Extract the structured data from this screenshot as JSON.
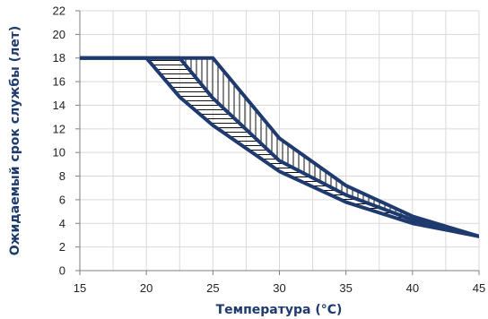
{
  "chart_data": {
    "type": "area",
    "title": "",
    "xlabel": "Температура (°C)",
    "ylabel": "Ожидаемый срок службы (лет)",
    "xlim": [
      15,
      45
    ],
    "ylim": [
      0,
      22
    ],
    "x_ticks": [
      15,
      20,
      25,
      30,
      35,
      40,
      45
    ],
    "y_ticks": [
      0,
      2,
      4,
      6,
      8,
      10,
      12,
      14,
      16,
      18,
      20,
      22
    ],
    "grid": true,
    "legend": "none",
    "series": [
      {
        "values": [
          [
            15,
            18
          ],
          [
            20,
            18
          ],
          [
            25,
            18
          ],
          [
            30,
            11.2
          ],
          [
            35,
            7.2
          ],
          [
            40,
            4.6
          ],
          [
            45,
            2.9
          ]
        ]
      },
      {
        "values": [
          [
            15,
            18
          ],
          [
            20,
            18
          ],
          [
            22.5,
            18
          ],
          [
            25,
            14.6
          ],
          [
            30,
            9.3
          ],
          [
            35,
            6.4
          ],
          [
            40,
            4.3
          ],
          [
            45,
            2.9
          ]
        ]
      },
      {
        "values": [
          [
            15,
            18
          ],
          [
            20,
            18
          ],
          [
            22.5,
            14.7
          ],
          [
            25,
            12.3
          ],
          [
            30,
            8.4
          ],
          [
            35,
            5.8
          ],
          [
            40,
            4.0
          ],
          [
            45,
            2.9
          ]
        ]
      }
    ],
    "hatched_bands": [
      {
        "upper_series": 0,
        "lower_series": 1,
        "pattern": "vertical"
      },
      {
        "upper_series": 1,
        "lower_series": 2,
        "pattern": "horizontal"
      }
    ],
    "colors": {
      "line": "#1e3a6e",
      "grid": "#d9d9d9",
      "axis": "#7f7f7f",
      "axis_title": "#1e3a6e",
      "hatch": "#111111"
    }
  }
}
